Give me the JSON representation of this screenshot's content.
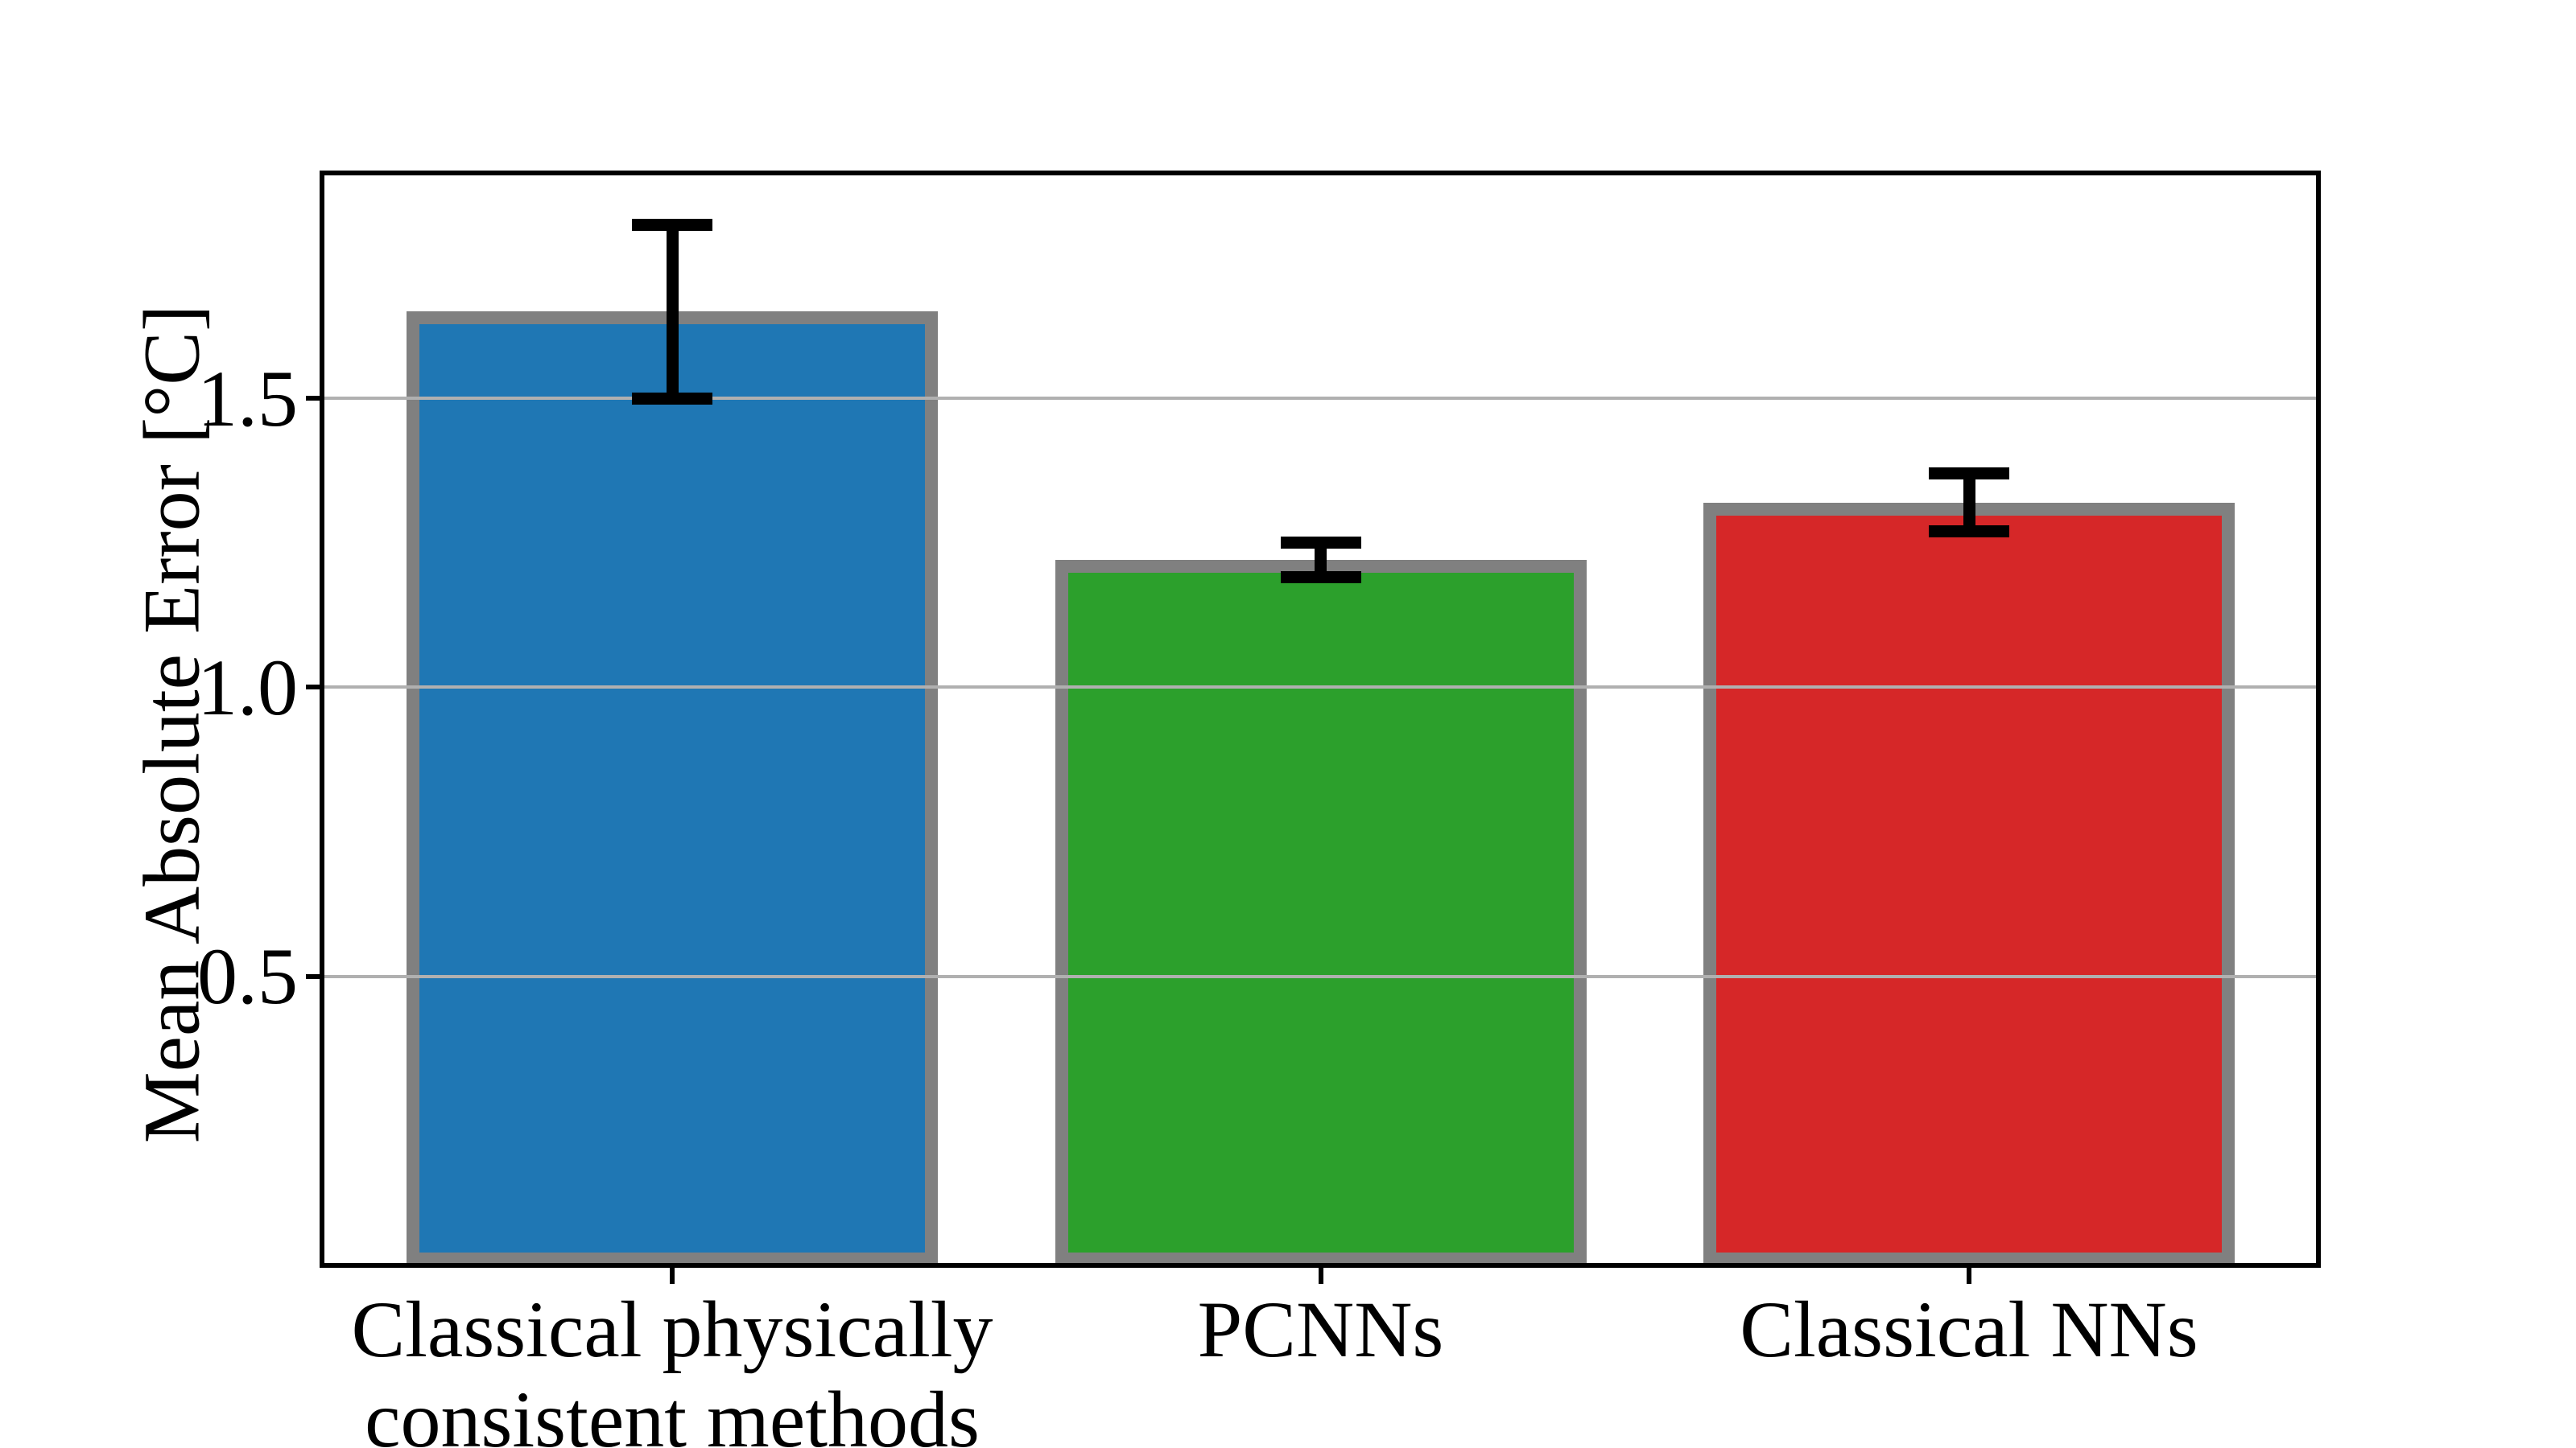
{
  "figure": {
    "background": "#ffffff"
  },
  "chart_data": {
    "type": "bar",
    "title": "",
    "xlabel": "",
    "ylabel": "Mean Absolute Error [°C]",
    "categories": [
      "Classical physically\nconsistent methods",
      "PCNNs",
      "Classical NNs"
    ],
    "values": [
      1.65,
      1.22,
      1.32
    ],
    "errors": [
      0.15,
      0.03,
      0.05
    ],
    "series_colors": [
      "#1f77b4",
      "#2ca02c",
      "#d62728"
    ],
    "bar_edge_color": "#808080",
    "error_bar_color": "#000000",
    "grid_color": "#b0b0b0",
    "spine_color": "#000000",
    "text_color": "#000000",
    "yticks": [
      0.5,
      1.0,
      1.5
    ],
    "ytick_labels": [
      "0.5",
      "1.0",
      "1.5"
    ],
    "ylim": [
      0,
      1.89
    ],
    "grid": "horizontal",
    "grid_above_bars": true,
    "legend": "none"
  }
}
